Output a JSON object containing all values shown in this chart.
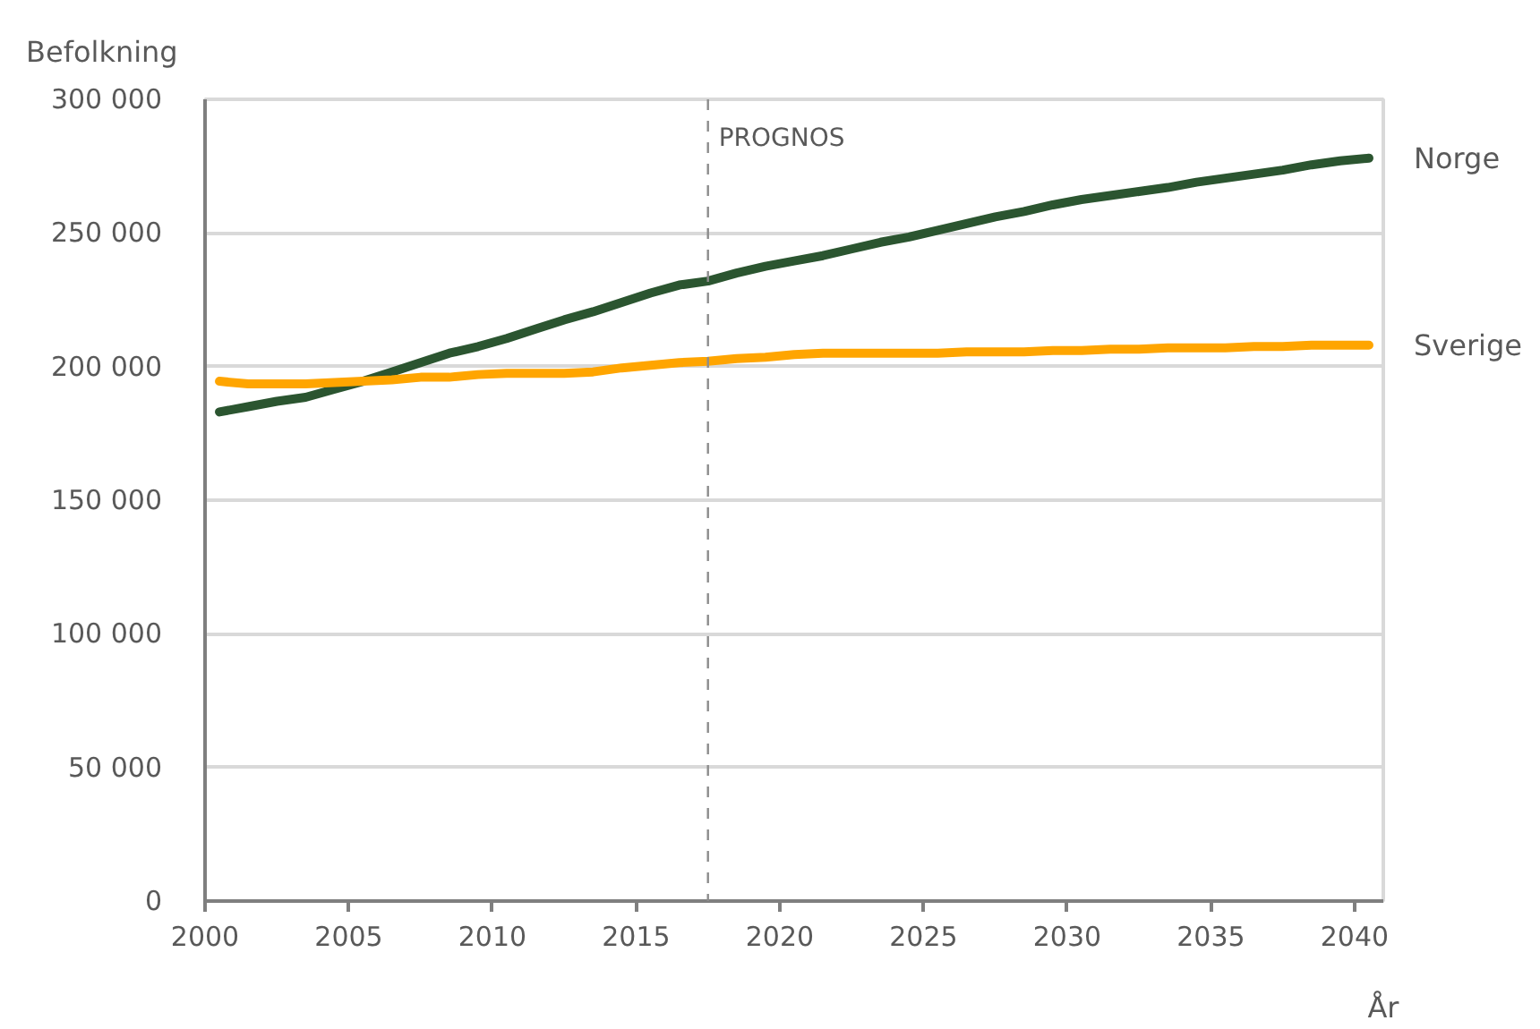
{
  "chart_data": {
    "type": "line",
    "xlabel": "År",
    "ylabel": "Befolkning",
    "x": [
      2000.5,
      2001.5,
      2002.5,
      2003.5,
      2004.5,
      2005.5,
      2006.5,
      2007.5,
      2008.5,
      2009.5,
      2010.5,
      2011.5,
      2012.5,
      2013.5,
      2014.5,
      2015.5,
      2016.5,
      2017.5,
      2018.5,
      2019.5,
      2020.5,
      2021.5,
      2022.5,
      2023.5,
      2024.5,
      2025.5,
      2026.5,
      2027.5,
      2028.5,
      2029.5,
      2030.5,
      2031.5,
      2032.5,
      2033.5,
      2034.5,
      2035.5,
      2036.5,
      2037.5,
      2038.5,
      2039.5,
      2040.5
    ],
    "xlim": [
      2000,
      2041
    ],
    "xticks": [
      2000,
      2005,
      2010,
      2015,
      2020,
      2025,
      2030,
      2035,
      2040
    ],
    "ylim": [
      0,
      300000
    ],
    "yticks": [
      0,
      {
        "value": 50000,
        "label": "50 000"
      },
      {
        "value": 100000,
        "label": "100 000"
      },
      {
        "value": 150000,
        "label": "150 000"
      },
      {
        "value": 200000,
        "label": "200 000"
      },
      {
        "value": 250000,
        "label": "250 000"
      },
      {
        "value": 300000,
        "label": "300 000"
      }
    ],
    "grid": "y",
    "legend": false,
    "marker": "none",
    "line_style": "solid",
    "series": [
      {
        "name": "Norge",
        "color": "#2b5530",
        "values": [
          183000,
          185000,
          187000,
          188500,
          191500,
          194500,
          198000,
          201500,
          205000,
          207500,
          210500,
          214000,
          217500,
          220500,
          224000,
          227500,
          230500,
          232000,
          235000,
          237500,
          239500,
          241500,
          244000,
          246500,
          248500,
          251000,
          253500,
          256000,
          258000,
          260500,
          262500,
          264000,
          265500,
          267000,
          269000,
          270500,
          272000,
          273500,
          275500,
          277000,
          278000
        ]
      },
      {
        "name": "Sverige",
        "color": "#ffa500",
        "values": [
          194500,
          193500,
          193500,
          193500,
          194000,
          194500,
          195000,
          196000,
          196000,
          197000,
          197500,
          197500,
          197500,
          198000,
          199500,
          200500,
          201500,
          202000,
          203000,
          203500,
          204500,
          205000,
          205000,
          205000,
          205000,
          205000,
          205500,
          205500,
          205500,
          206000,
          206000,
          206500,
          206500,
          207000,
          207000,
          207000,
          207500,
          207500,
          208000,
          208000,
          208000
        ]
      }
    ],
    "ref_lines": [
      {
        "axis": "x",
        "value": 2017.5,
        "label": "PROGNOS",
        "color": "#8c8c8c",
        "line_style": "dashed"
      }
    ]
  }
}
